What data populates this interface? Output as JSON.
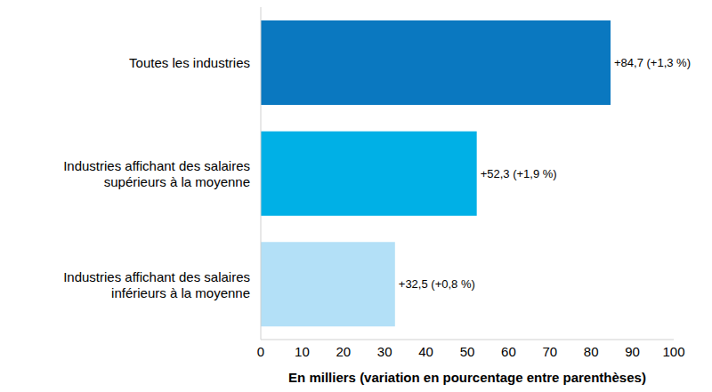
{
  "chart_data": {
    "type": "bar",
    "orientation": "horizontal",
    "categories": [
      "Toutes les industries",
      "Industries affichant des salaires\nsupérieurs à la moyenne",
      "Industries affichant des salaires\ninférieurs à la moyenne"
    ],
    "values": [
      84.7,
      52.3,
      32.5
    ],
    "value_labels": [
      "+84,7 (+1,3 %)",
      "+52,3 (+1,9 %)",
      "+32,5 (+0,8 %)"
    ],
    "colors": [
      "#0a78c0",
      "#00b0e6",
      "#b3e0f7"
    ],
    "xlabel": "En milliers (variation en pourcentage entre parenthèses)",
    "xlim": [
      0,
      100
    ],
    "xticks": [
      0,
      10,
      20,
      30,
      40,
      50,
      60,
      70,
      80,
      90,
      100
    ],
    "grid": false,
    "data_labels": true
  }
}
